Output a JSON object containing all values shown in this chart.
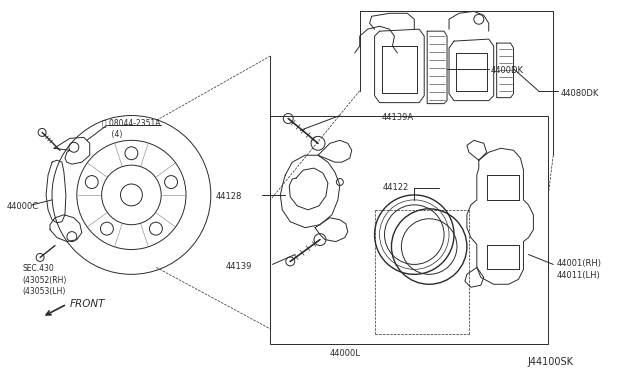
{
  "bg_color": "#ffffff",
  "line_color": "#2a2a2a",
  "title_code": "J44100SK",
  "bolt_label": "Ⓑ 08044-2351A\n    (4)",
  "label_44000C": "44000C",
  "label_sec": "SEC.430\n(43052➩RH➨)\n(43053➩LH➨)",
  "label_sec2": "SEC.430\n(43052(RH)\n(43053(LH)",
  "label_44139A": "44139A",
  "label_44128": "44128",
  "label_44139": "44139",
  "label_44122": "44122",
  "label_44000L": "44000L",
  "label_4400DK": "4400DK",
  "label_44080K": "44080DK",
  "label_44001": "44001(RH)\n44011(LH)",
  "front_label": "FRONT",
  "font_size_label": 6.0,
  "font_size_code": 7.0
}
